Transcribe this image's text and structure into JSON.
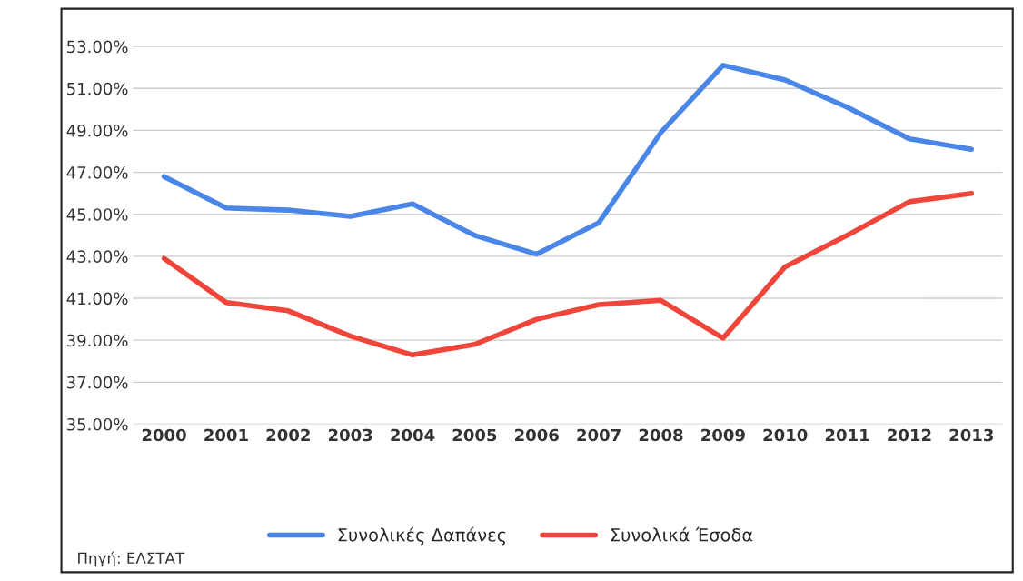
{
  "chart_data": {
    "type": "line",
    "categories": [
      "2000",
      "2001",
      "2002",
      "2003",
      "2004",
      "2005",
      "2006",
      "2007",
      "2008",
      "2009",
      "2010",
      "2011",
      "2012",
      "2013"
    ],
    "series": [
      {
        "name": "Συνολικές Δαπάνες",
        "color": "#4a86e8",
        "values": [
          46.8,
          45.3,
          45.2,
          44.9,
          45.5,
          44.0,
          43.1,
          44.6,
          48.9,
          52.1,
          51.4,
          50.1,
          48.6,
          48.1
        ]
      },
      {
        "name": "Συνολικά Έσοδα",
        "color": "#f0453a",
        "values": [
          42.9,
          40.8,
          40.4,
          39.2,
          38.3,
          38.8,
          40.0,
          40.7,
          40.9,
          39.1,
          42.5,
          44.0,
          45.6,
          46.0
        ]
      }
    ],
    "ylim": [
      35,
      53
    ],
    "yticks": [
      {
        "value": 35,
        "label": "35.00%"
      },
      {
        "value": 37,
        "label": "37.00%"
      },
      {
        "value": 39,
        "label": "39.00%"
      },
      {
        "value": 41,
        "label": "41.00%"
      },
      {
        "value": 43,
        "label": "43.00%"
      },
      {
        "value": 45,
        "label": "45.00%"
      },
      {
        "value": 47,
        "label": "47.00%"
      },
      {
        "value": 49,
        "label": "49.00%"
      },
      {
        "value": 51,
        "label": "51.00%"
      },
      {
        "value": 53,
        "label": "53.00%"
      }
    ],
    "grid": "y",
    "legend": "bottom",
    "marker": "none",
    "line_style": "solid",
    "annotations": [
      "Πηγή: ΕΛΣΤΑΤ"
    ]
  }
}
